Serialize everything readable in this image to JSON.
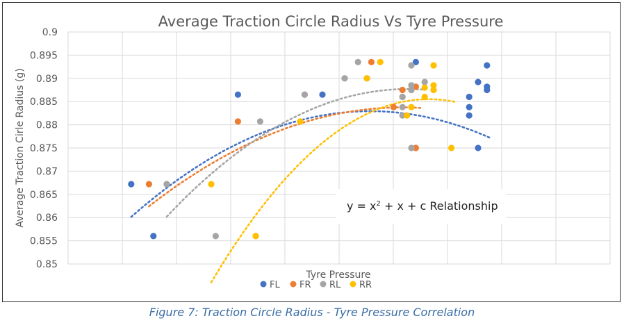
{
  "caption": "Figure 7: Traction Circle Radius - Tyre Pressure Correlation",
  "annotation": {
    "prefix": "y = x",
    "superscript": "2",
    "suffix": " + x + c Relationship"
  },
  "chart_data": {
    "type": "scatter",
    "title": "Average Traction Circle Radius Vs Tyre Pressure",
    "xlabel": "Tyre Pressure",
    "ylabel": "Average Traction Cirle Radius (g)",
    "ylim": [
      0.85,
      0.9
    ],
    "xlim": [
      0,
      10
    ],
    "y_ticks": [
      "0.85",
      "0.855",
      "0.86",
      "0.865",
      "0.87",
      "0.875",
      "0.88",
      "0.885",
      "0.89",
      "0.895",
      "0.9"
    ],
    "x_tick_labels_shown": false,
    "grid": true,
    "legend_position": "bottom",
    "trendline": "polynomial (order 2), dotted",
    "series": [
      {
        "name": "FL",
        "color": "#4472C4",
        "points": [
          [
            0.2,
            0.8672
          ],
          [
            0.7,
            0.856
          ],
          [
            1.0,
            0.8672
          ],
          [
            2.6,
            0.8865
          ],
          [
            4.5,
            0.8865
          ],
          [
            5.5,
            0.89
          ],
          [
            6.6,
            0.8935
          ],
          [
            7.8,
            0.886
          ],
          [
            7.8,
            0.8838
          ],
          [
            7.8,
            0.882
          ],
          [
            8.0,
            0.875
          ],
          [
            8.0,
            0.8892
          ],
          [
            8.2,
            0.8928
          ],
          [
            8.2,
            0.8882
          ],
          [
            8.2,
            0.8875
          ]
        ],
        "trend": {
          "x0": 0.2,
          "x1": 8.3,
          "a": -0.0007895,
          "b": 0.0088,
          "c": 0.8584
        }
      },
      {
        "name": "FR",
        "color": "#ED7D31",
        "points": [
          [
            0.6,
            0.8672
          ],
          [
            2.6,
            0.8807
          ],
          [
            3.0,
            0.856
          ],
          [
            4.1,
            0.8865
          ],
          [
            5.0,
            0.89
          ],
          [
            5.6,
            0.8935
          ],
          [
            6.1,
            0.8838
          ],
          [
            6.3,
            0.886
          ],
          [
            6.3,
            0.8875
          ],
          [
            6.5,
            0.8875
          ],
          [
            6.6,
            0.8882
          ],
          [
            6.6,
            0.875
          ]
        ],
        "trend": {
          "x0": 0.6,
          "x1": 6.7,
          "a": -0.000655,
          "b": 0.00826,
          "c": 0.8577
        }
      },
      {
        "name": "RL",
        "color": "#A5A5A5",
        "points": [
          [
            1.0,
            0.8672
          ],
          [
            2.1,
            0.856
          ],
          [
            3.1,
            0.8807
          ],
          [
            4.1,
            0.8865
          ],
          [
            5.0,
            0.89
          ],
          [
            5.3,
            0.8935
          ],
          [
            6.3,
            0.8838
          ],
          [
            6.3,
            0.882
          ],
          [
            6.3,
            0.886
          ],
          [
            6.5,
            0.8875
          ],
          [
            6.5,
            0.8885
          ],
          [
            6.5,
            0.8928
          ],
          [
            6.5,
            0.875
          ],
          [
            6.8,
            0.8892
          ]
        ],
        "trend": {
          "x0": 1.0,
          "x1": 6.8,
          "a": -0.000939,
          "b": 0.01204,
          "c": 0.8491
        }
      },
      {
        "name": "RR",
        "color": "#FFC000",
        "points": [
          [
            2.0,
            0.8672
          ],
          [
            3.0,
            0.856
          ],
          [
            4.0,
            0.8807
          ],
          [
            5.5,
            0.89
          ],
          [
            5.8,
            0.8935
          ],
          [
            6.4,
            0.882
          ],
          [
            6.5,
            0.8838
          ],
          [
            6.8,
            0.886
          ],
          [
            6.8,
            0.888
          ],
          [
            7.0,
            0.8928
          ],
          [
            7.0,
            0.8875
          ],
          [
            7.0,
            0.8885
          ],
          [
            7.4,
            0.875
          ]
        ],
        "trend": {
          "x0": 2.0,
          "x1": 7.5,
          "a": -0.001653,
          "b": 0.02277,
          "c": 0.8071
        }
      }
    ]
  }
}
